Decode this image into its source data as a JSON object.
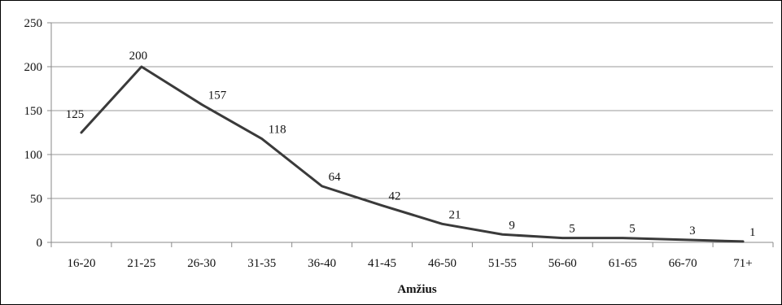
{
  "chart_data": {
    "type": "line",
    "title": "",
    "xlabel": "Amžius",
    "ylabel": "",
    "ylim": [
      0,
      250
    ],
    "yticks": [
      0,
      50,
      100,
      150,
      200,
      250
    ],
    "ytick_labels": [
      "0",
      "50",
      "100",
      "150",
      "200",
      "250"
    ],
    "categories": [
      "16-20",
      "21-25",
      "26-30",
      "31-35",
      "36-40",
      "41-45",
      "46-50",
      "51-55",
      "56-60",
      "61-65",
      "66-70",
      "71+"
    ],
    "series": [
      {
        "values": [
          125,
          200,
          157,
          118,
          64,
          42,
          21,
          9,
          5,
          5,
          3,
          1
        ],
        "data_labels": [
          "125",
          "200",
          "157",
          "118",
          "64",
          "42",
          "21",
          "9",
          "5",
          "5",
          "3",
          "1"
        ]
      }
    ],
    "grid": "horizontal",
    "legend": "none",
    "colors": {
      "line": "#3a3a3a",
      "grid": "#9a9a9a",
      "axis": "#8a8a8a"
    }
  }
}
